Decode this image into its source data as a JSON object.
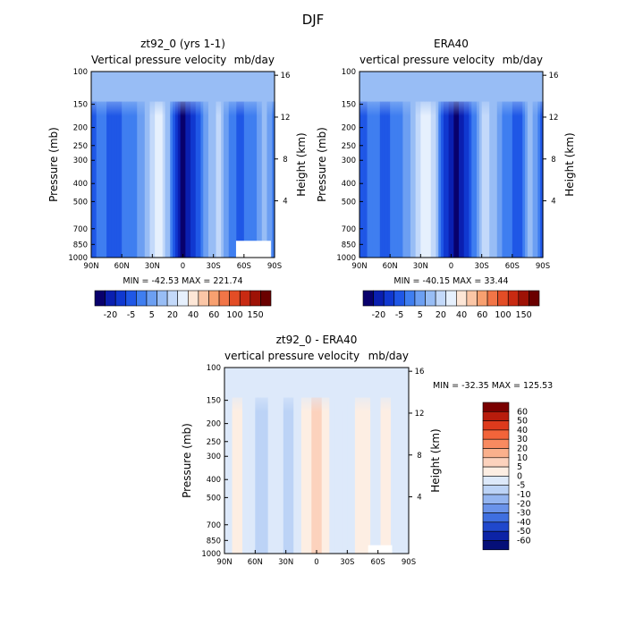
{
  "figure_title": "DJF",
  "chart_data": [
    {
      "type": "heatmap",
      "title": "zt92_0 (yrs 1-1)",
      "subtitle_left": "Vertical pressure velocity",
      "subtitle_right": "mb/day",
      "xlabel": "",
      "ylabel": "Pressure (mb)",
      "ylabel_right": "Height (km)",
      "x_ticks": [
        "90N",
        "60N",
        "30N",
        "0",
        "30S",
        "60S",
        "90S"
      ],
      "y_ticks": [
        "100",
        "150",
        "200",
        "250",
        "300",
        "400",
        "500",
        "700",
        "850",
        "1000"
      ],
      "y_ticks_right": [
        "16",
        "12",
        "8",
        "4"
      ],
      "min_max_text": "MIN = -42.53   MAX = 221.74",
      "colorbar": {
        "orientation": "horizontal",
        "tick_labels": [
          "-20",
          "-5",
          "5",
          "20",
          "40",
          "60",
          "100",
          "150"
        ],
        "colors": [
          "#08006c",
          "#0a1fb0",
          "#1038d0",
          "#1f57e6",
          "#3f7ef0",
          "#6c9ff2",
          "#98bdf5",
          "#c3d9fa",
          "#e6f0fd",
          "#fde6d6",
          "#fbc6a6",
          "#f8a070",
          "#f27547",
          "#e34d26",
          "#c82a12",
          "#9e1206",
          "#6a0000"
        ]
      },
      "field_id": "model"
    },
    {
      "type": "heatmap",
      "title": "ERA40",
      "subtitle_left": "vertical pressure velocity",
      "subtitle_right": "mb/day",
      "xlabel": "",
      "ylabel": "Pressure (mb)",
      "ylabel_right": "Height (km)",
      "x_ticks": [
        "90N",
        "60N",
        "30N",
        "0",
        "30S",
        "60S",
        "90S"
      ],
      "y_ticks": [
        "100",
        "150",
        "200",
        "250",
        "300",
        "400",
        "500",
        "700",
        "850",
        "1000"
      ],
      "y_ticks_right": [
        "16",
        "12",
        "8",
        "4"
      ],
      "min_max_text": "MIN = -40.15   MAX =  33.44",
      "colorbar": {
        "orientation": "horizontal",
        "tick_labels": [
          "-20",
          "-5",
          "5",
          "20",
          "40",
          "60",
          "100",
          "150"
        ],
        "colors": [
          "#08006c",
          "#0a1fb0",
          "#1038d0",
          "#1f57e6",
          "#3f7ef0",
          "#6c9ff2",
          "#98bdf5",
          "#c3d9fa",
          "#e6f0fd",
          "#fde6d6",
          "#fbc6a6",
          "#f8a070",
          "#f27547",
          "#e34d26",
          "#c82a12",
          "#9e1206",
          "#6a0000"
        ]
      },
      "field_id": "obs"
    },
    {
      "type": "heatmap",
      "title": "zt92_0 - ERA40",
      "subtitle_left": "vertical pressure velocity",
      "subtitle_right": "mb/day",
      "xlabel": "",
      "ylabel": "Pressure (mb)",
      "ylabel_right": "Height (km)",
      "x_ticks": [
        "90N",
        "60N",
        "30N",
        "0",
        "30S",
        "60S",
        "90S"
      ],
      "y_ticks": [
        "100",
        "150",
        "200",
        "250",
        "300",
        "400",
        "500",
        "700",
        "850",
        "1000"
      ],
      "y_ticks_right": [
        "16",
        "12",
        "8",
        "4"
      ],
      "min_max_text": "MIN = -32.35   MAX = 125.53",
      "colorbar": {
        "orientation": "vertical",
        "tick_labels": [
          "60",
          "50",
          "40",
          "30",
          "20",
          "10",
          "5",
          "0",
          "-5",
          "-10",
          "-20",
          "-30",
          "-40",
          "-50",
          "-60"
        ],
        "colors": [
          "#7a0000",
          "#b81c0c",
          "#dd3a1c",
          "#f2643a",
          "#f88a60",
          "#fab08c",
          "#fcd2bd",
          "#fdeee3",
          "#dde9fa",
          "#bcd3f6",
          "#94b5f0",
          "#6a93ea",
          "#3f6fe0",
          "#2048cc",
          "#0c23a6",
          "#050f78"
        ]
      },
      "field_id": "diff"
    }
  ]
}
